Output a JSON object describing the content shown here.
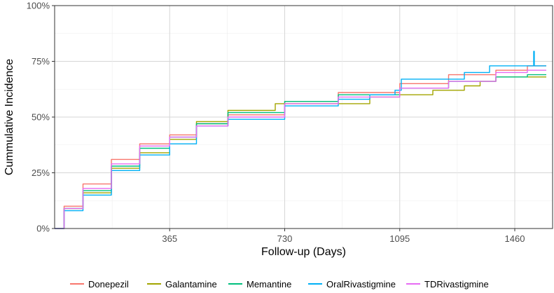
{
  "chart_data": {
    "type": "line",
    "title": "",
    "xlabel": "Follow-up (Days)",
    "ylabel": "Cummulative Incidence",
    "xlim": [
      0,
      1580
    ],
    "ylim": [
      0,
      1
    ],
    "x_ticks": [
      365,
      730,
      1095,
      1460
    ],
    "x_tick_labels": [
      "365",
      "730",
      "1095",
      "1460"
    ],
    "y_ticks": [
      0,
      0.25,
      0.5,
      0.75,
      1.0
    ],
    "y_tick_labels": [
      "0%",
      "25%",
      "50%",
      "75%",
      "100%"
    ],
    "grid": true,
    "legend_position": "bottom",
    "series": [
      {
        "name": "Donepezil",
        "color": "#F8766D",
        "points": [
          [
            0,
            0
          ],
          [
            30,
            0.1
          ],
          [
            90,
            0.2
          ],
          [
            180,
            0.31
          ],
          [
            270,
            0.38
          ],
          [
            365,
            0.42
          ],
          [
            450,
            0.47
          ],
          [
            550,
            0.51
          ],
          [
            730,
            0.57
          ],
          [
            900,
            0.61
          ],
          [
            1095,
            0.65
          ],
          [
            1250,
            0.69
          ],
          [
            1400,
            0.71
          ],
          [
            1500,
            0.73
          ],
          [
            1560,
            0.73
          ]
        ]
      },
      {
        "name": "Galantamine",
        "color": "#A3A500",
        "points": [
          [
            0,
            0
          ],
          [
            30,
            0.09
          ],
          [
            90,
            0.16
          ],
          [
            180,
            0.27
          ],
          [
            270,
            0.34
          ],
          [
            365,
            0.4
          ],
          [
            450,
            0.48
          ],
          [
            550,
            0.53
          ],
          [
            700,
            0.56
          ],
          [
            850,
            0.56
          ],
          [
            1000,
            0.59
          ],
          [
            1095,
            0.6
          ],
          [
            1200,
            0.62
          ],
          [
            1300,
            0.64
          ],
          [
            1350,
            0.66
          ],
          [
            1400,
            0.68
          ],
          [
            1560,
            0.68
          ]
        ]
      },
      {
        "name": "Memantine",
        "color": "#00BF7D",
        "points": [
          [
            0,
            0
          ],
          [
            30,
            0.09
          ],
          [
            90,
            0.17
          ],
          [
            180,
            0.28
          ],
          [
            270,
            0.36
          ],
          [
            365,
            0.41
          ],
          [
            450,
            0.47
          ],
          [
            550,
            0.52
          ],
          [
            730,
            0.57
          ],
          [
            900,
            0.6
          ],
          [
            1095,
            0.63
          ],
          [
            1250,
            0.66
          ],
          [
            1400,
            0.68
          ],
          [
            1500,
            0.69
          ],
          [
            1560,
            0.69
          ]
        ]
      },
      {
        "name": "OralRivastigmine",
        "color": "#00B0F6",
        "points": [
          [
            0,
            0
          ],
          [
            30,
            0.08
          ],
          [
            90,
            0.15
          ],
          [
            180,
            0.26
          ],
          [
            270,
            0.33
          ],
          [
            365,
            0.38
          ],
          [
            450,
            0.46
          ],
          [
            550,
            0.49
          ],
          [
            730,
            0.55
          ],
          [
            900,
            0.58
          ],
          [
            1000,
            0.6
          ],
          [
            1080,
            0.62
          ],
          [
            1100,
            0.67
          ],
          [
            1300,
            0.7
          ],
          [
            1380,
            0.73
          ],
          [
            1520,
            0.73
          ],
          [
            1520,
            0.795
          ],
          [
            1522,
            0.73
          ],
          [
            1560,
            0.73
          ]
        ]
      },
      {
        "name": "TDRivastigmine",
        "color": "#E76BF3",
        "points": [
          [
            0,
            0
          ],
          [
            30,
            0.09
          ],
          [
            90,
            0.18
          ],
          [
            180,
            0.29
          ],
          [
            270,
            0.37
          ],
          [
            365,
            0.41
          ],
          [
            450,
            0.46
          ],
          [
            550,
            0.5
          ],
          [
            730,
            0.56
          ],
          [
            900,
            0.59
          ],
          [
            1095,
            0.63
          ],
          [
            1250,
            0.66
          ],
          [
            1400,
            0.7
          ],
          [
            1500,
            0.71
          ],
          [
            1560,
            0.71
          ]
        ]
      }
    ]
  }
}
